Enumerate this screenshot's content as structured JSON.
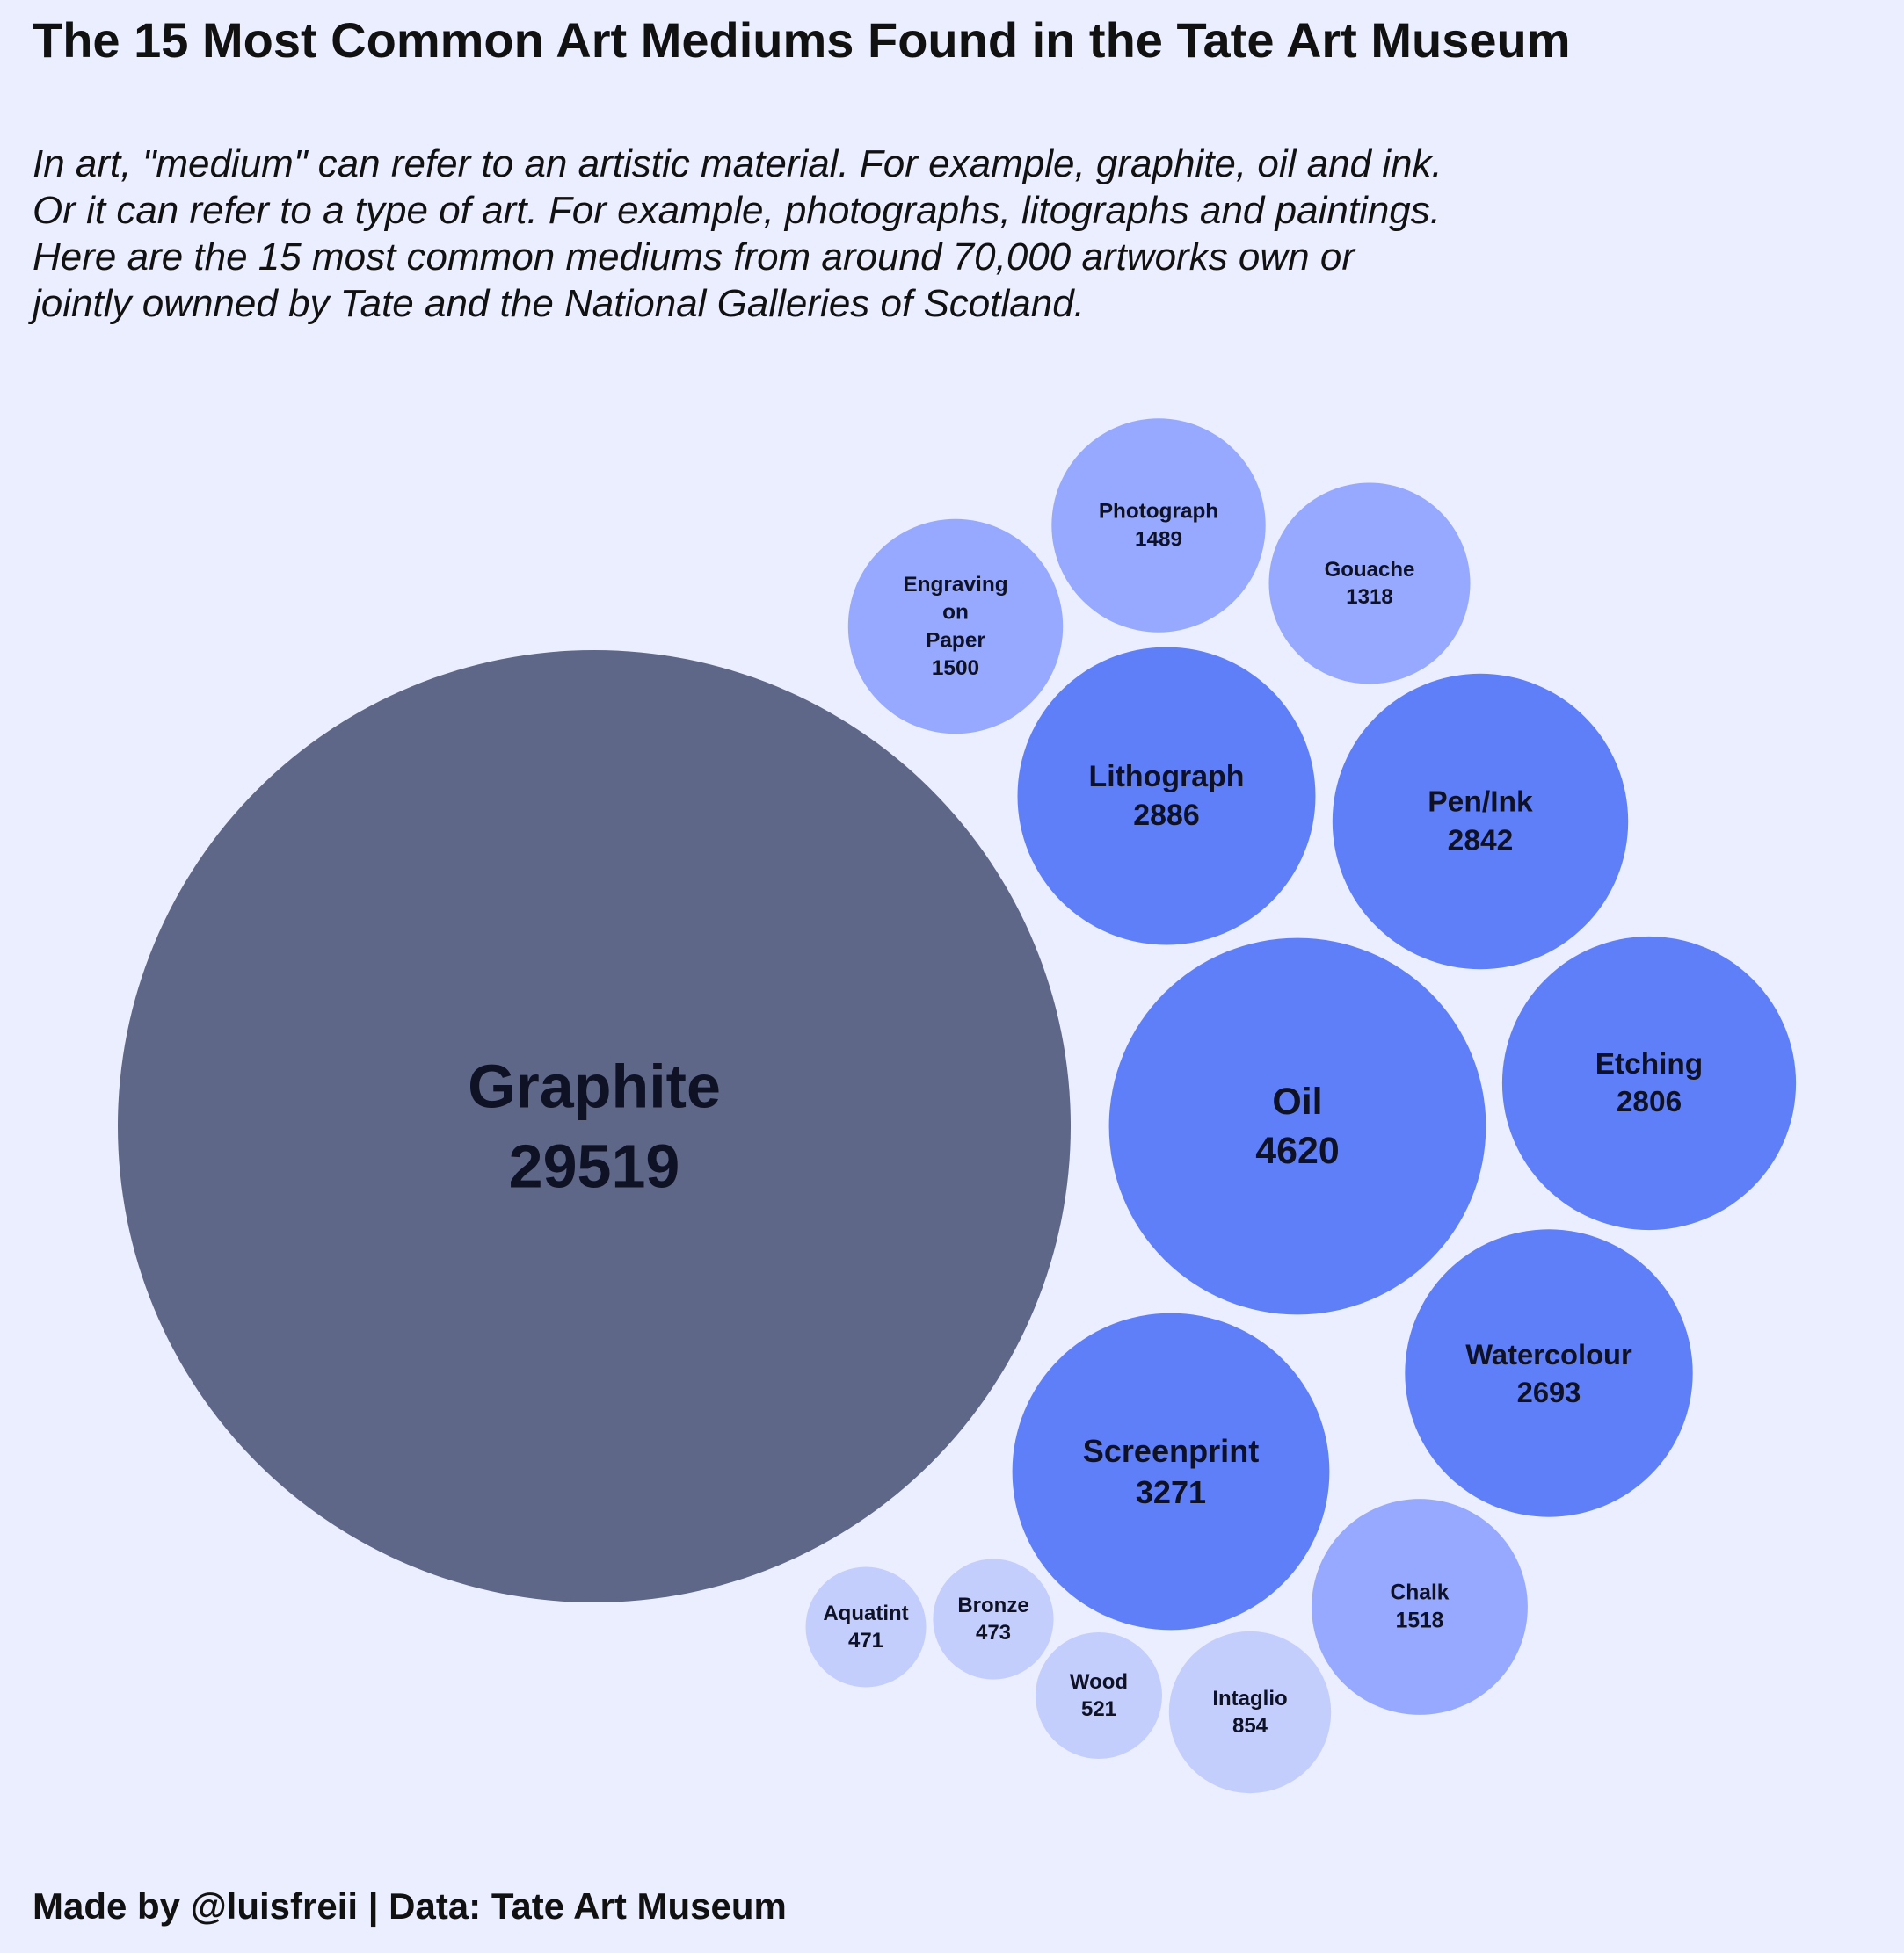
{
  "title": "The 15 Most Common Art Mediums Found in the Tate Art Museum",
  "subtitle_lines": [
    "In art, \"medium\" can refer to an artistic material. For example, graphite, oil and ink.",
    "Or it can refer to a type of art. For example, photographs, litographs and paintings.",
    "Here are the 15 most common mediums from around 70,000 artworks own or",
    "jointly ownned by Tate and the National Galleries of Scotland."
  ],
  "caption": "Made by @luisfreii | Data: Tate Art Museum",
  "colors": {
    "background": "#ebeefe",
    "largest": "#5e6788",
    "high": "#5f7ff9",
    "mid": "#96a9fe",
    "low": "#c3cefd"
  },
  "chart_data": {
    "type": "packed-bubble",
    "title": "The 15 Most Common Art Mediums Found in the Tate Art Museum",
    "categories": [
      "Graphite",
      "Oil",
      "Screenprint",
      "Lithograph",
      "Pen/Ink",
      "Etching",
      "Watercolour",
      "Chalk",
      "Engraving on Paper",
      "Photograph",
      "Gouache",
      "Intaglio",
      "Wood",
      "Bronze",
      "Aquatint"
    ],
    "values": [
      29519,
      4620,
      3271,
      2886,
      2842,
      2806,
      2693,
      1518,
      1500,
      1489,
      1318,
      854,
      521,
      473,
      471
    ],
    "label_lines": {
      "Engraving on Paper": [
        "Engraving",
        "on",
        "Paper"
      ]
    },
    "color_scale": "darker fill for larger count",
    "legend": "none"
  }
}
